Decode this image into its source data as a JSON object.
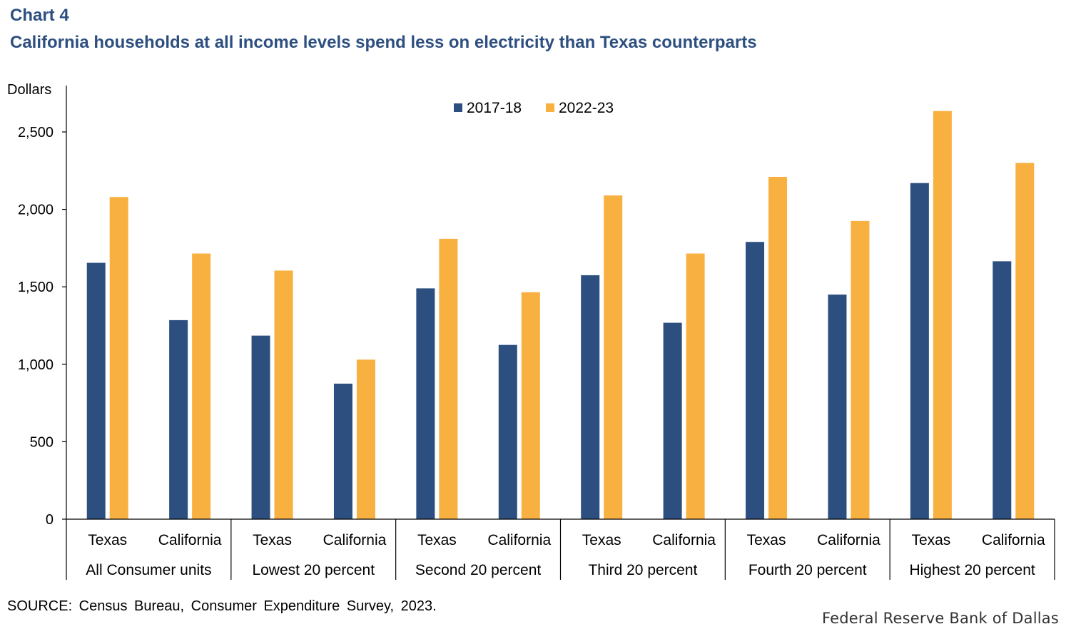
{
  "header": {
    "chart_number": "Chart 4",
    "title": "California households at all income levels spend less on electricity than Texas counterparts"
  },
  "footer": {
    "source": "SOURCE: Census Bureau, Consumer Expenditure Survey, 2023.",
    "credit": "Federal Reserve Bank of Dallas"
  },
  "colors": {
    "series_2017": "#2d4f80",
    "series_2022": "#f8b040",
    "text": "#000000",
    "title": "#2d4f80"
  },
  "chart_data": {
    "type": "bar",
    "title": "California households at all income levels spend less on electricity than Texas counterparts",
    "ylabel": "Dollars",
    "xlabel": "",
    "ylim": [
      0,
      2800
    ],
    "yticks": [
      0,
      500,
      1000,
      1500,
      2000,
      2500
    ],
    "ytick_labels": [
      "0",
      "500",
      "1,000",
      "1,500",
      "2,000",
      "2,500"
    ],
    "grid": false,
    "legend_position": "top-center",
    "groups": [
      "All Consumer units",
      "Lowest 20 percent",
      "Second 20 percent",
      "Third 20 percent",
      "Fourth 20 percent",
      "Highest 20 percent"
    ],
    "categories": [
      "Texas",
      "California",
      "Texas",
      "California",
      "Texas",
      "California",
      "Texas",
      "California",
      "Texas",
      "California",
      "Texas",
      "California"
    ],
    "series": [
      {
        "name": "2017-18",
        "values": [
          1655,
          1285,
          1185,
          875,
          1490,
          1125,
          1575,
          1268,
          1790,
          1450,
          2170,
          1665
        ]
      },
      {
        "name": "2022-23",
        "values": [
          2080,
          1715,
          1605,
          1030,
          1810,
          1465,
          2090,
          1715,
          2210,
          1925,
          2635,
          2300
        ]
      }
    ]
  }
}
